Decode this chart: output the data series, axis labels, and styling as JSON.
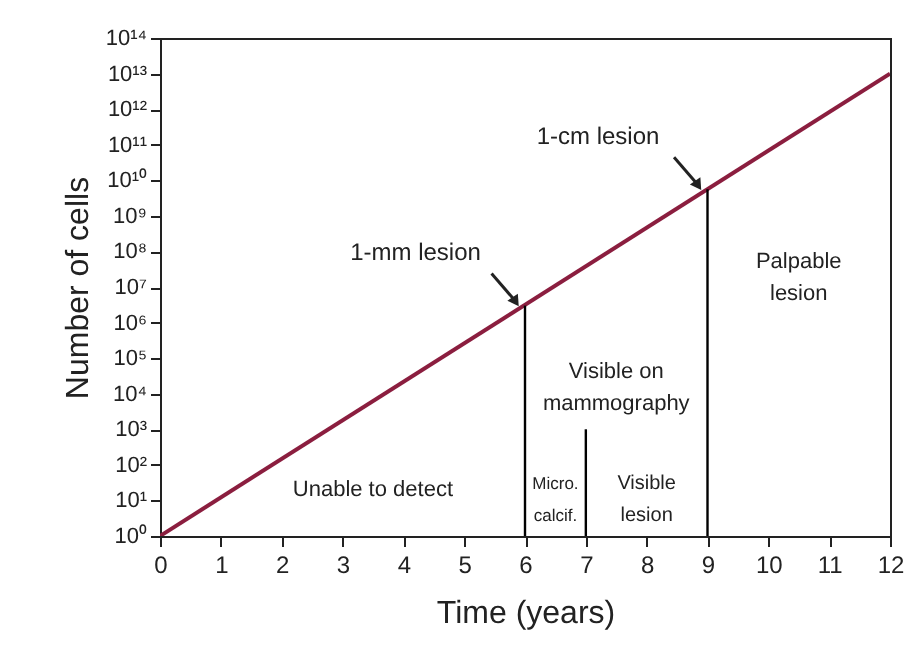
{
  "chart_data": {
    "type": "line",
    "xlabel": "Time (years)",
    "ylabel": "Number of cells",
    "log": "y",
    "xlim": [
      0,
      12
    ],
    "xticks": [
      0,
      1,
      2,
      3,
      4,
      5,
      6,
      7,
      8,
      9,
      10,
      11,
      12
    ],
    "ylim": [
      1,
      100000000000000
    ],
    "yticks": [
      {
        "value": 1,
        "label": "10⁰"
      },
      {
        "value": 10,
        "label": "10¹"
      },
      {
        "value": 100,
        "label": "10²"
      },
      {
        "value": 1000,
        "label": "10³"
      },
      {
        "value": 10000,
        "label": "10⁴"
      },
      {
        "value": 100000,
        "label": "10⁵"
      },
      {
        "value": 1000000,
        "label": "10⁶"
      },
      {
        "value": 10000000,
        "label": "10⁷"
      },
      {
        "value": 100000000,
        "label": "10⁸"
      },
      {
        "value": 1000000000,
        "label": "10⁹"
      },
      {
        "value": 10000000000,
        "label": "10¹⁰"
      },
      {
        "value": 100000000000,
        "label": "10¹¹"
      },
      {
        "value": 1000000000000,
        "label": "10¹²"
      },
      {
        "value": 10000000000000,
        "label": "10¹³"
      },
      {
        "value": 100000000000000,
        "label": "10¹⁴"
      }
    ],
    "grid": false,
    "line_style": "solid",
    "series": [
      {
        "color": "#8b1e3f",
        "x": [
          0,
          12
        ],
        "values": [
          1,
          10000000000000
        ]
      },
      {
        "color": "#000000",
        "x": [
          6,
          6
        ],
        "values": [
          1,
          3000000
        ]
      },
      {
        "color": "#000000",
        "x": [
          7,
          7
        ],
        "values": [
          1,
          1000
        ]
      },
      {
        "color": "#000000",
        "x": [
          9,
          9
        ],
        "values": [
          1,
          5600000000
        ]
      }
    ],
    "annotations": [
      {
        "text": "1-mm lesion",
        "x": 6,
        "y": 3000000
      },
      {
        "text": "1-cm lesion",
        "x": 9,
        "y": 5600000000
      },
      "Unable to detect",
      "Micro.\ncalcif.",
      "Visible\nlesion",
      "Visible on\nmammography",
      "Palpable\nlesion"
    ]
  }
}
